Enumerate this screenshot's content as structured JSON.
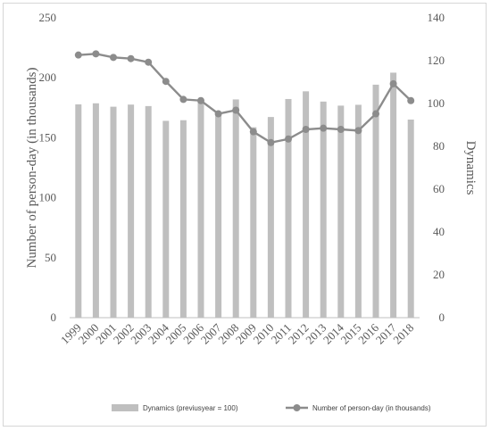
{
  "chart_data": {
    "type": "bar+line",
    "categories": [
      "1999",
      "2000",
      "2001",
      "2002",
      "2003",
      "2004",
      "2005",
      "2006",
      "2007",
      "2008",
      "2009",
      "2010",
      "2011",
      "2012",
      "2013",
      "2014",
      "2015",
      "2016",
      "2017",
      "2018"
    ],
    "y_left": {
      "label": "Number of person-day (in thousands)",
      "range": [
        0,
        250
      ],
      "ticks": [
        0,
        50,
        100,
        150,
        200,
        250
      ]
    },
    "y_right": {
      "label": "Dynamics",
      "range": [
        0,
        140
      ],
      "ticks": [
        0,
        20,
        40,
        60,
        80,
        100,
        120,
        140
      ]
    },
    "series": [
      {
        "name": "Dynamics (previusyear = 100)",
        "type": "bar",
        "axis": "right",
        "color": "#bfbfbf",
        "values": [
          99.6,
          100.1,
          98.5,
          99.5,
          98.8,
          91.9,
          92.2,
          101.6,
          94.6,
          101.9,
          88.9,
          93.7,
          102.1,
          105.7,
          100.9,
          99.0,
          99.4,
          108.8,
          114.4,
          92.5
        ]
      },
      {
        "name": "Number of person-day (in thousands)",
        "type": "line",
        "axis": "left",
        "color": "#8c8c8c",
        "values": [
          219,
          220,
          217,
          216,
          213,
          197,
          182,
          181,
          170,
          173,
          155,
          146,
          149,
          157,
          158,
          157,
          156,
          170,
          195,
          181
        ]
      }
    ],
    "legend_position": "bottom",
    "grid": false
  }
}
